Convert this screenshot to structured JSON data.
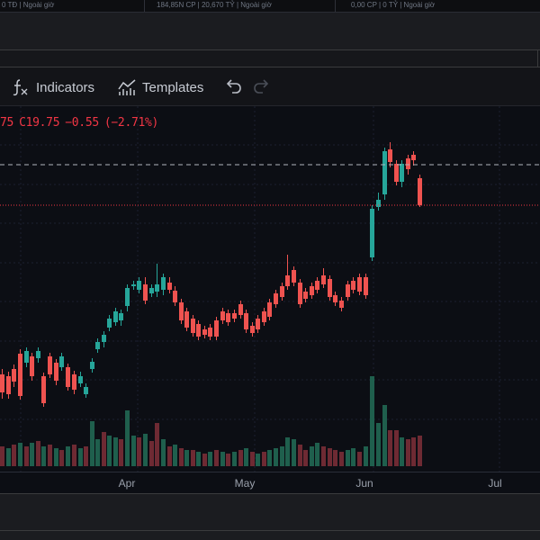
{
  "top_strip": {
    "items": [
      {
        "text": "0 TĐ | Ngoài giờ"
      },
      {
        "text": "184,85N CP | 20,670 TỶ | Ngoài giờ"
      },
      {
        "text": "0,00 CP | 0 TỶ | Ngoài giờ"
      }
    ]
  },
  "toolbar": {
    "indicators_label": "Indicators",
    "templates_label": "Templates"
  },
  "legend": {
    "prev_fragment": "75",
    "close": "C19.75",
    "change": "−0.55",
    "change_pct": "(−2.71%)",
    "color": "#f23645"
  },
  "chart_data": {
    "type": "candlestick",
    "x_labels": [
      "Apr",
      "May",
      "Jun",
      "Jul"
    ],
    "colors": {
      "up": "#26a69a",
      "down": "#ef5350",
      "vol_up": "#1f5f4d",
      "vol_down": "#6e2a33"
    },
    "reference_lines": [
      {
        "style": "dashed",
        "color": "#b2b5be"
      },
      {
        "style": "dotted",
        "color": "#f23645"
      }
    ]
  }
}
